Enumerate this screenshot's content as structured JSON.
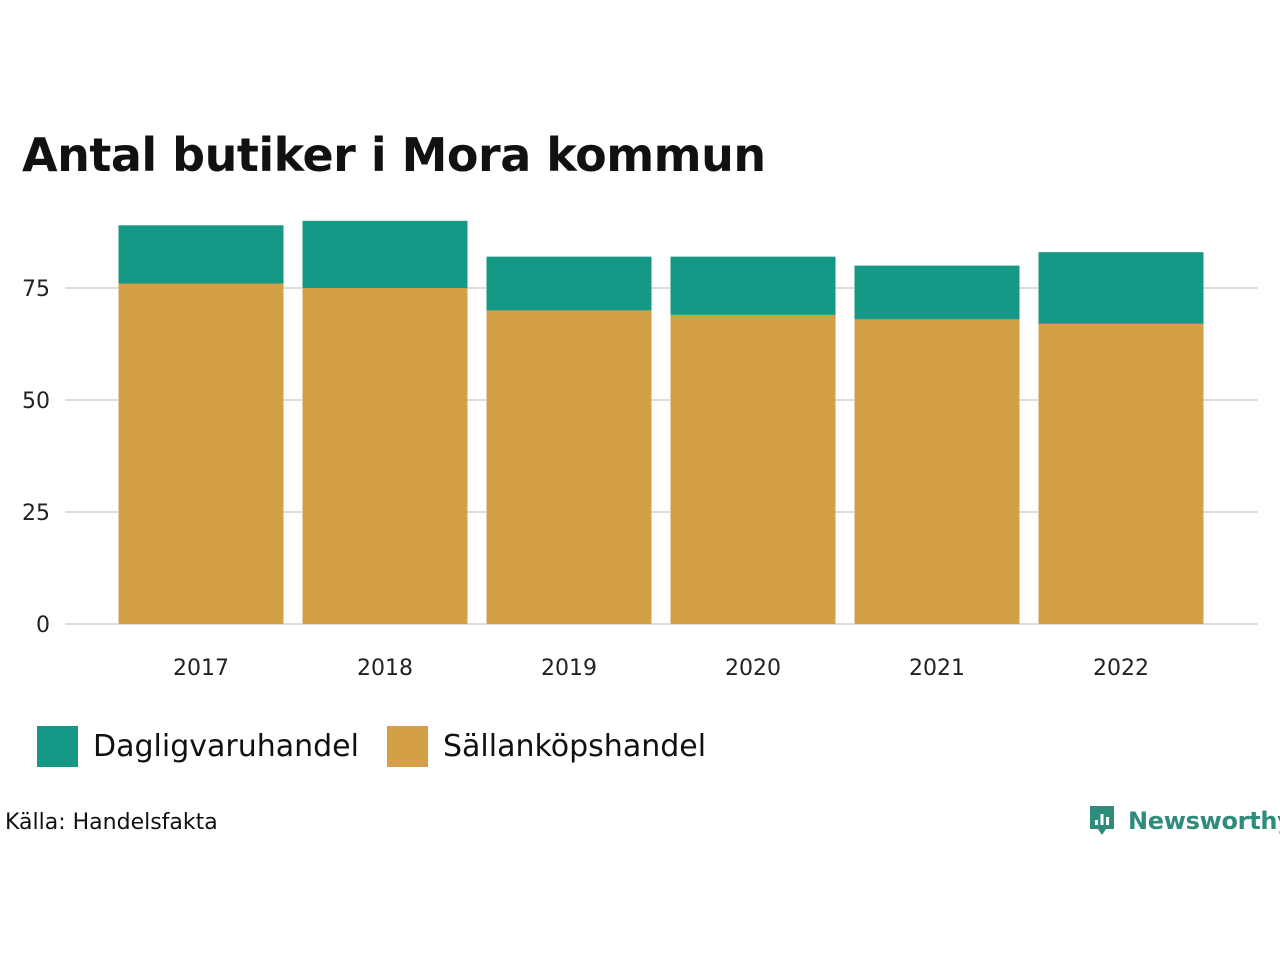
{
  "title": "Antal butiker i Mora kommun",
  "source": "Källa: Handelsfakta",
  "brand": "Newsworthy",
  "colors": {
    "Dagligvaruhandel": "#169886",
    "Sällanköpshandel": "#d3a048",
    "grid": "#dddddd",
    "brand": "#2f8c7c"
  },
  "legend": [
    {
      "name": "Dagligvaruhandel",
      "color": "#169886"
    },
    {
      "name": "Sällanköpshandel",
      "color": "#d3a048"
    }
  ],
  "chart_data": {
    "type": "bar",
    "stacked": true,
    "title": "Antal butiker i Mora kommun",
    "xlabel": "",
    "ylabel": "",
    "categories": [
      "2017",
      "2018",
      "2019",
      "2020",
      "2021",
      "2022"
    ],
    "series": [
      {
        "name": "Sällanköpshandel",
        "values": [
          76,
          75,
          70,
          69,
          68,
          67
        ]
      },
      {
        "name": "Dagligvaruhandel",
        "values": [
          13,
          15,
          12,
          13,
          12,
          16
        ]
      }
    ],
    "y_ticks": [
      0,
      25,
      50,
      75
    ],
    "y_tick_labels": [
      "0",
      "25",
      "50",
      "75"
    ],
    "ylim": [
      0,
      90
    ],
    "grid": true,
    "legend_position": "bottom-left"
  }
}
